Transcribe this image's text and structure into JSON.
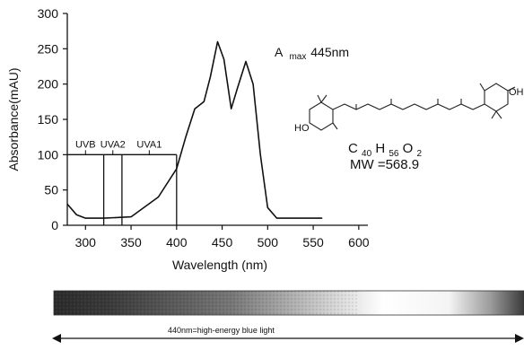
{
  "chart_data": {
    "type": "line",
    "title": "",
    "xlabel": "Wavelength (nm)",
    "ylabel": "Absorbance(mAU)",
    "xlim": [
      280,
      610
    ],
    "ylim": [
      0,
      300
    ],
    "x_ticks": [
      300,
      350,
      400,
      450,
      500,
      550,
      600
    ],
    "y_ticks": [
      0,
      50,
      100,
      150,
      200,
      250,
      300
    ],
    "series": [
      {
        "x": [
          280,
          290,
          300,
          320,
          350,
          380,
          400,
          410,
          420,
          430,
          437,
          445,
          452,
          460,
          467,
          476,
          484,
          492,
          500,
          510,
          530,
          560
        ],
        "values": [
          30,
          15,
          10,
          10,
          12,
          40,
          80,
          125,
          165,
          175,
          210,
          260,
          235,
          165,
          195,
          232,
          200,
          100,
          25,
          10,
          10,
          10
        ]
      }
    ],
    "uv_bands": [
      {
        "label": "UVB",
        "range": [
          280,
          320
        ]
      },
      {
        "label": "UVA2",
        "range": [
          320,
          340
        ]
      },
      {
        "label": "UVA1",
        "range": [
          340,
          400
        ]
      }
    ],
    "uv_box_y": 100,
    "annotations": {
      "lambda_max_prefix": "A",
      "lambda_max_sub": "max",
      "lambda_max_value": "445nm",
      "formula_c": "C",
      "formula_c_sub": "40",
      "formula_h": "H",
      "formula_h_sub": "56",
      "formula_o": "O",
      "formula_o_sub": "2",
      "mw": "MW =568.9",
      "ho_label": "HO",
      "oh_label": "OH"
    },
    "spectrum_bar_label": "440nm=high-energy blue light"
  }
}
